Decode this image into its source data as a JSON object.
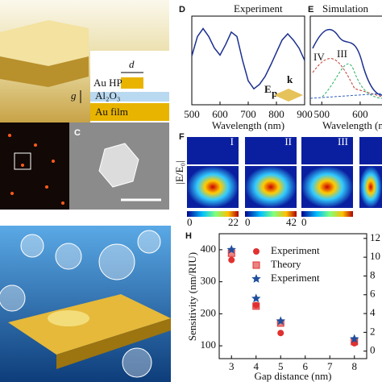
{
  "panel_labels": [
    "C",
    "D",
    "E",
    "F",
    "H"
  ],
  "schematic": {
    "d": "d",
    "g": "g",
    "au_hp": "Au HP",
    "al2o3": "Al₂O₃",
    "au_film": "Au film"
  },
  "polarization": {
    "e": "E",
    "sub": "p",
    "k": "k"
  },
  "simulation_plot": {
    "title": "Simulation",
    "x_label": "Wavelength (nm)",
    "xticks": [
      500,
      600
    ],
    "xlim": [
      470,
      680
    ],
    "modes": [
      "IV",
      "III"
    ]
  },
  "field_maps": {
    "modes": [
      "I",
      "II",
      "III"
    ],
    "colorbar_label": "|E/E₀|",
    "colorbars": [
      [
        0,
        22
      ],
      [
        0,
        42
      ],
      [
        0
      ]
    ]
  },
  "chart_data": [
    {
      "type": "line",
      "title": "Experiment",
      "x_label": "Wavelength (nm)",
      "color": "#1b2f8f",
      "x": [
        500,
        520,
        540,
        560,
        580,
        600,
        620,
        640,
        660,
        680,
        700,
        720,
        740,
        760,
        780,
        800,
        820,
        840,
        860,
        880,
        900
      ],
      "values": [
        0.55,
        0.77,
        0.86,
        0.77,
        0.64,
        0.56,
        0.68,
        0.82,
        0.77,
        0.5,
        0.27,
        0.18,
        0.23,
        0.32,
        0.45,
        0.59,
        0.73,
        0.8,
        0.73,
        0.64,
        0.5
      ],
      "xlim": [
        500,
        900
      ],
      "xticks": [
        500,
        600,
        700,
        800,
        900
      ],
      "ylim": [
        0,
        1
      ]
    },
    {
      "type": "scatter",
      "x_label": "Gap distance (nm)",
      "y_label": "Sensitivity (nm/RIU)",
      "x": [
        3,
        4,
        5,
        8
      ],
      "xlim": [
        2.5,
        8.5
      ],
      "xticks": [
        3,
        4,
        5,
        6,
        7,
        8
      ],
      "ylim": [
        60,
        450
      ],
      "yticks": [
        100,
        200,
        300,
        400
      ],
      "y2lim": [
        -0.8,
        12.5
      ],
      "y2ticks": [
        0,
        2,
        4,
        6,
        8,
        10,
        12
      ],
      "series": [
        {
          "name": "Experiment",
          "color": "#e03030",
          "marker": "circle",
          "values": [
            368,
            227,
            140,
            108
          ]
        },
        {
          "name": "Theory",
          "color": "#e03030",
          "marker": "square",
          "values": [
            389,
            224,
            171,
            113
          ]
        },
        {
          "name": "Experiment",
          "color": "#1f4e9c",
          "marker": "star",
          "axis": "y2",
          "values": [
            10.8,
            5.6,
            3.2,
            1.3
          ]
        }
      ]
    }
  ]
}
